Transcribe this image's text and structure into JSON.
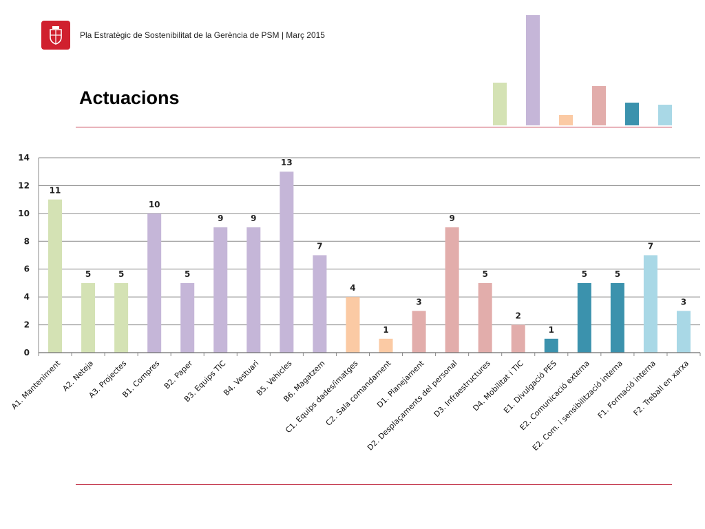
{
  "header": {
    "subtitle": "Pla Estratègic de Sostenibilitat de la Gerència de PSM | Març 2015"
  },
  "page": {
    "title": "Actuacions"
  },
  "logo": {
    "icon": "barcelona-crest-icon",
    "color": "#d0202e"
  },
  "decor_colors": [
    "#d4e2b4",
    "#c5b6d8",
    "#fbcaa4",
    "#e2adab",
    "#3b92ad",
    "#a9d8e6"
  ],
  "chart_data": {
    "type": "bar",
    "title": "",
    "xlabel": "",
    "ylabel": "",
    "ylim": [
      0,
      14
    ],
    "yticks": [
      "0",
      "2",
      "4",
      "6",
      "8",
      "10",
      "12",
      "14"
    ],
    "grid": true,
    "legend": "none",
    "categories": [
      "A1. Manteniment",
      "A2. Neteja",
      "A3. Projectes",
      "B1. Compres",
      "B2. Paper",
      "B3. Equips TIC",
      "B4. Vestuari",
      "B5. Vehicles",
      "B6. Magatzem",
      "C1. Equips dades/imatges",
      "C2. Sala comandament",
      "D1. Planejament",
      "D2. Desplaçaments del personal",
      "D3. Infraestructures",
      "D4. Mobilitat i TIC",
      "E1. Divulgació PES",
      "E2. Comunicació externa",
      "E2. Com. i sensibilització interna",
      "F1. Formació interna",
      "F2. Treball en xarxa"
    ],
    "values": [
      11,
      5,
      5,
      10,
      5,
      9,
      9,
      13,
      7,
      4,
      1,
      3,
      9,
      5,
      2,
      1,
      5,
      5,
      7,
      3
    ],
    "colors": [
      "#d4e2b4",
      "#d4e2b4",
      "#d4e2b4",
      "#c5b6d8",
      "#c5b6d8",
      "#c5b6d8",
      "#c5b6d8",
      "#c5b6d8",
      "#c5b6d8",
      "#fbcaa4",
      "#fbcaa4",
      "#e2adab",
      "#e2adab",
      "#e2adab",
      "#e2adab",
      "#3b92ad",
      "#3b92ad",
      "#3b92ad",
      "#a9d8e6",
      "#a9d8e6"
    ]
  }
}
